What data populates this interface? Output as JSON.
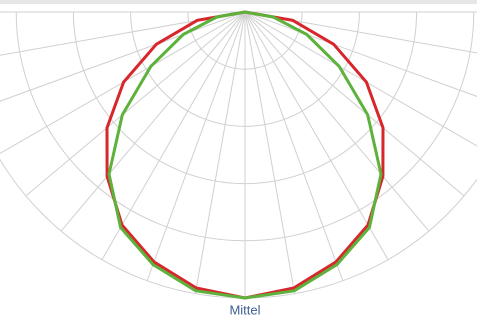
{
  "chart_data": {
    "type": "polar",
    "label": "Mittel",
    "angles": [
      -90,
      -80,
      -70,
      -60,
      -50,
      -40,
      -30,
      -20,
      -10,
      0,
      10,
      20,
      30,
      40,
      50,
      60,
      70,
      80,
      90
    ],
    "rlim": [
      0,
      100
    ],
    "rticks": [
      20,
      40,
      60,
      80,
      100
    ],
    "grid": true,
    "series": [
      {
        "color": "#d7262c",
        "values": [
          0,
          17,
          33,
          49,
          63,
          75,
          86,
          93,
          98,
          100,
          98,
          93,
          86,
          75,
          63,
          49,
          33,
          17,
          0
        ]
      },
      {
        "color": "#5cb23b",
        "values": [
          0,
          10,
          23,
          38,
          56,
          74,
          87,
          94,
          99,
          100,
          99,
          94,
          87,
          74,
          56,
          38,
          23,
          10,
          0
        ]
      }
    ]
  }
}
